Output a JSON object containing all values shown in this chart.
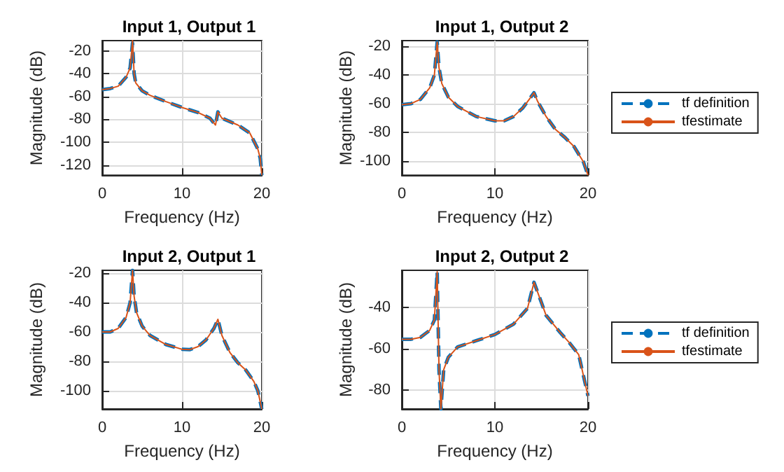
{
  "chart_data": [
    {
      "type": "line",
      "title": "Input 1, Output 1",
      "xlabel": "Frequency (Hz)",
      "ylabel": "Magnitude (dB)",
      "xlim": [
        0,
        20
      ],
      "xticks": [
        0,
        10,
        20
      ],
      "ylim": [
        -129,
        -11
      ],
      "yticks": [
        -120,
        -100,
        -80,
        -60,
        -40,
        -20
      ],
      "grid": true,
      "legend": false,
      "marker": "none",
      "x": [
        0,
        1,
        2,
        3,
        3.5,
        3.8,
        4,
        4.2,
        5,
        6,
        8,
        10,
        12,
        13.5,
        14.2,
        14.5,
        15,
        17,
        18.5,
        19.5,
        19.8,
        20
      ],
      "series": [
        {
          "color": "#0072bd",
          "line_style": "dashed",
          "values": [
            -54,
            -53,
            -51,
            -43,
            -35,
            -13,
            -40,
            -48,
            -55,
            -59,
            -64.5,
            -69.6,
            -74,
            -79,
            -85,
            -73.5,
            -79,
            -85,
            -92,
            -106,
            -114,
            -129
          ]
        },
        {
          "color": "#d95319",
          "line_style": "solid",
          "values": [
            -54,
            -53,
            -51,
            -43,
            -35,
            -11,
            -40,
            -48,
            -55,
            -59,
            -64.5,
            -69.6,
            -74,
            -79,
            -85,
            -73.5,
            -79,
            -85,
            -92,
            -106,
            -114,
            -129
          ]
        }
      ]
    },
    {
      "type": "line",
      "title": "Input 1, Output 2",
      "xlabel": "Frequency (Hz)",
      "ylabel": "Magnitude (dB)",
      "xlim": [
        0,
        20
      ],
      "xticks": [
        0,
        10,
        20
      ],
      "ylim": [
        -110,
        -16
      ],
      "yticks": [
        -100,
        -80,
        -60,
        -40,
        -20
      ],
      "grid": true,
      "legend": "right",
      "marker": "none",
      "x": [
        0,
        1,
        2,
        3,
        3.5,
        3.8,
        4,
        4.3,
        5,
        6,
        8,
        10,
        11,
        12,
        13,
        13.8,
        14.2,
        14.6,
        15.5,
        16.5,
        17.5,
        18.5,
        19.5,
        20
      ],
      "series": [
        {
          "name": "tf definition",
          "color": "#0072bd",
          "line_style": "dashed",
          "values": [
            -60.8,
            -60,
            -57,
            -49,
            -40,
            -17,
            -35,
            -46,
            -55.5,
            -62,
            -69,
            -72,
            -72,
            -69,
            -63,
            -56,
            -52.4,
            -58.6,
            -69,
            -78,
            -83.5,
            -90,
            -100.6,
            -110
          ]
        },
        {
          "name": "tfestimate",
          "color": "#d95319",
          "line_style": "solid",
          "values": [
            -60.8,
            -60,
            -57,
            -49,
            -40,
            -17,
            -35,
            -46,
            -55.5,
            -62,
            -69,
            -72,
            -72,
            -69,
            -63,
            -56,
            -52.4,
            -58.6,
            -69,
            -78,
            -83.5,
            -90,
            -100.6,
            -110
          ]
        }
      ]
    },
    {
      "type": "line",
      "title": "Input 2, Output 1",
      "xlabel": "Frequency (Hz)",
      "ylabel": "Magnitude (dB)",
      "xlim": [
        0,
        20
      ],
      "xticks": [
        0,
        10,
        20
      ],
      "ylim": [
        -112.5,
        -18
      ],
      "yticks": [
        -100,
        -80,
        -60,
        -40,
        -20
      ],
      "grid": true,
      "legend": false,
      "marker": "none",
      "x": [
        0,
        1,
        2,
        3,
        3.5,
        3.8,
        4,
        4.3,
        5,
        6,
        8,
        10,
        11,
        12,
        13,
        14,
        14.5,
        15,
        16,
        17,
        18,
        19,
        19.5,
        20
      ],
      "series": [
        {
          "color": "#0072bd",
          "line_style": "dashed",
          "values": [
            -60,
            -60,
            -57.6,
            -50,
            -40,
            -18,
            -35.7,
            -46.7,
            -56,
            -62.4,
            -68.6,
            -71.8,
            -72,
            -70,
            -65.5,
            -57.6,
            -51.4,
            -62.4,
            -74,
            -81,
            -86,
            -93.7,
            -100,
            -112.5
          ]
        },
        {
          "color": "#d95319",
          "line_style": "solid",
          "values": [
            -60,
            -60,
            -57.6,
            -50,
            -40,
            -18,
            -35.7,
            -46.7,
            -56,
            -62.4,
            -68.6,
            -71.8,
            -72,
            -70,
            -65.5,
            -57.6,
            -51.4,
            -62.4,
            -74,
            -81,
            -86,
            -93.7,
            -100,
            -112.5
          ]
        }
      ]
    },
    {
      "type": "line",
      "title": "Input 2, Output 2",
      "xlabel": "Frequency (Hz)",
      "ylabel": "Magnitude (dB)",
      "xlim": [
        0,
        20
      ],
      "xticks": [
        0,
        10,
        20
      ],
      "ylim": [
        -89,
        -22
      ],
      "yticks": [
        -80,
        -60,
        -40
      ],
      "grid": true,
      "legend": "right",
      "marker": "none",
      "x": [
        0,
        1,
        2,
        3,
        3.5,
        3.8,
        4,
        4.2,
        4.5,
        5,
        6,
        8,
        10,
        12,
        13.5,
        14.2,
        14.6,
        15.5,
        17,
        18,
        19,
        20
      ],
      "series": [
        {
          "name": "tf definition",
          "color": "#0072bd",
          "line_style": "dashed",
          "values": [
            -55.3,
            -55.3,
            -54.4,
            -51,
            -46,
            -22.7,
            -70.4,
            -89,
            -70,
            -64,
            -59,
            -56,
            -53,
            -48,
            -40.4,
            -27.8,
            -32.7,
            -43.8,
            -52,
            -57,
            -62.7,
            -82.7
          ]
        },
        {
          "name": "tfestimate",
          "color": "#d95319",
          "line_style": "solid",
          "values": [
            -55.3,
            -55.3,
            -54.4,
            -51,
            -46,
            -22.7,
            -70.4,
            -89,
            -70,
            -64,
            -59,
            -56,
            -53,
            -48,
            -40.4,
            -27.8,
            -32.7,
            -43.8,
            -52,
            -57,
            -62.7,
            -82.7
          ]
        }
      ]
    }
  ]
}
